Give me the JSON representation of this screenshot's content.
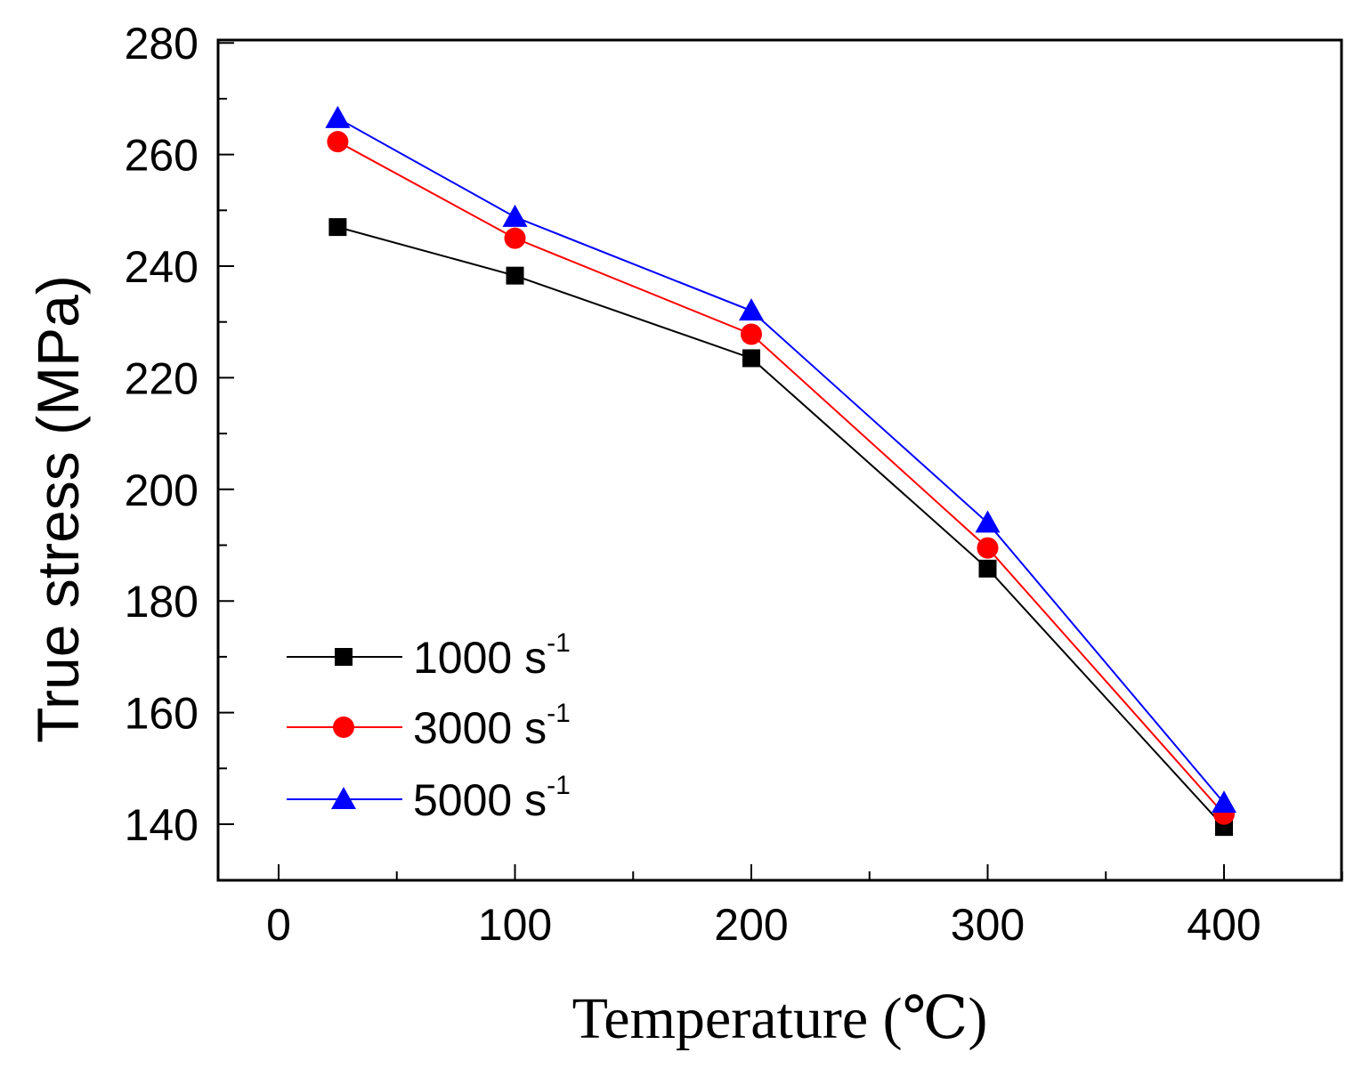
{
  "chart_data": {
    "type": "line",
    "title": "",
    "xlabel": "Temperature (℃)",
    "ylabel": "True stress (MPa)",
    "xlim": [
      -25,
      450
    ],
    "ylim": [
      130,
      280
    ],
    "xticks": [
      "0",
      "100",
      "200",
      "300",
      "400"
    ],
    "yticks": [
      "140",
      "160",
      "180",
      "200",
      "220",
      "240",
      "260",
      "280"
    ],
    "x": [
      25,
      100,
      200,
      300,
      400
    ],
    "series": [
      {
        "name": "1000 s",
        "exponent": "-1",
        "color": "#000000",
        "marker": "square",
        "values": [
          247,
          238.3,
          223.5,
          185.8,
          139.5
        ]
      },
      {
        "name": "3000 s",
        "exponent": "-1",
        "color": "#ff0000",
        "marker": "circle",
        "values": [
          262.3,
          245,
          227.8,
          189.5,
          141.8
        ]
      },
      {
        "name": "5000 s",
        "exponent": "-1",
        "color": "#0000ff",
        "marker": "triangle",
        "values": [
          266.5,
          248.8,
          232,
          194,
          143.8
        ]
      }
    ],
    "legend_position": "bottom-left",
    "grid": false
  }
}
